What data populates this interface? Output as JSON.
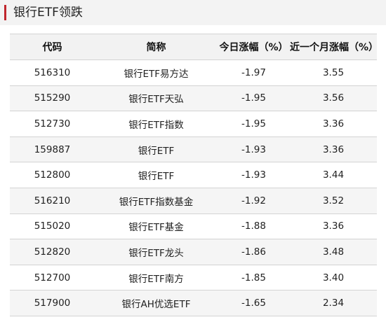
{
  "title": "银行ETF领跌",
  "colors": {
    "accent": "#c0262d",
    "header_bg": "#f2f2f2",
    "stripe_bg": "#f5f5f5"
  },
  "table": {
    "headers": [
      "代码",
      "简称",
      "今日涨幅（%）",
      "近一个月涨幅（%）"
    ],
    "rows": [
      [
        "516310",
        "银行ETF易方达",
        "-1.97",
        "3.55"
      ],
      [
        "515290",
        "银行ETF天弘",
        "-1.95",
        "3.56"
      ],
      [
        "512730",
        "银行ETF指数",
        "-1.95",
        "3.36"
      ],
      [
        "159887",
        "银行ETF",
        "-1.93",
        "3.36"
      ],
      [
        "512800",
        "银行ETF",
        "-1.93",
        "3.44"
      ],
      [
        "516210",
        "银行ETF指数基金",
        "-1.92",
        "3.52"
      ],
      [
        "515020",
        "银行ETF基金",
        "-1.88",
        "3.36"
      ],
      [
        "512820",
        "银行ETF龙头",
        "-1.86",
        "3.48"
      ],
      [
        "512700",
        "银行ETF南方",
        "-1.85",
        "3.40"
      ],
      [
        "517900",
        "银行AH优选ETF",
        "-1.65",
        "2.34"
      ]
    ]
  }
}
